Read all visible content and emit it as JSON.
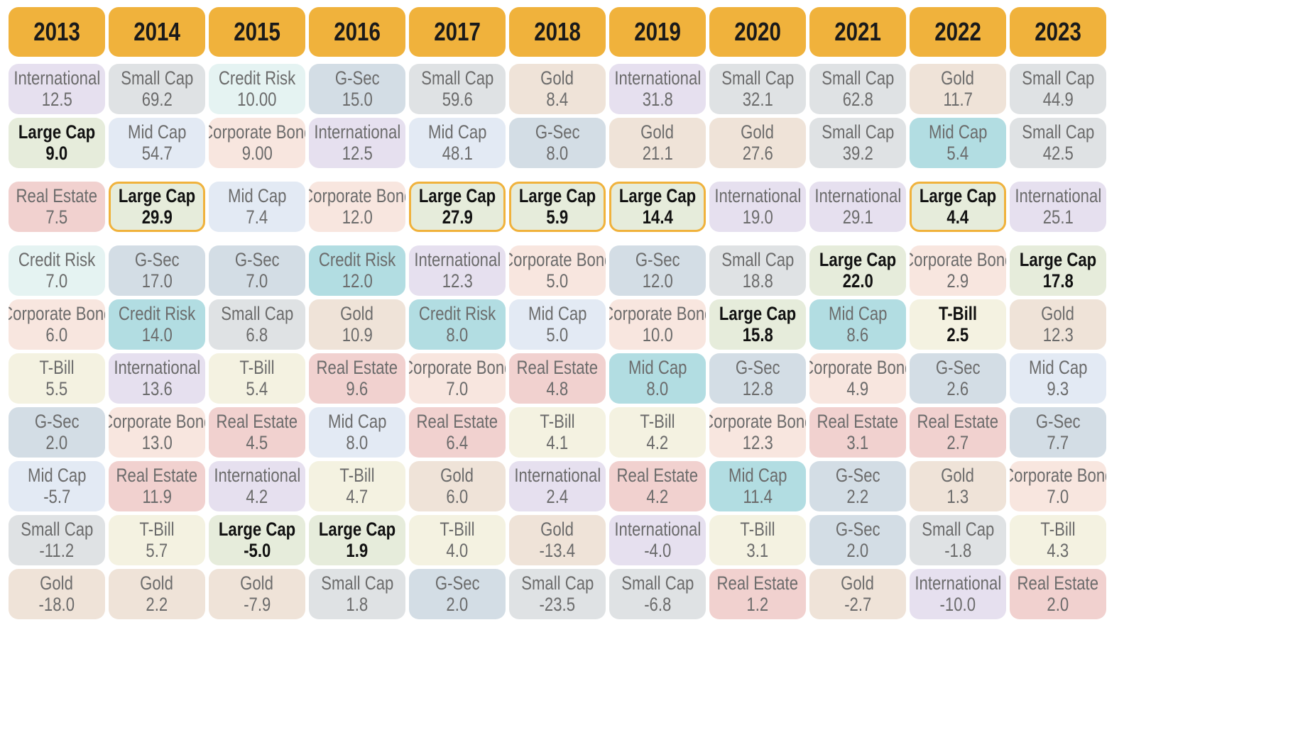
{
  "chart_data": {
    "type": "table",
    "title": "",
    "highlight_series": "Large Cap",
    "outlined_cells_note_series": "Large Cap",
    "colors": {
      "header": "#f0b23c",
      "highlight_text": "#111111",
      "text": "#6b6b6b",
      "outline": "#f0b23c"
    },
    "asset_colors": {
      "International": "#e6e0ef",
      "Small Cap": "#dfe2e4",
      "Credit Risk": "#e5f3f2",
      "G-Sec": "#d3dde5",
      "Gold": "#efe3d8",
      "Large Cap": "#e6ecdb",
      "Mid Cap": "#e3eaf4",
      "Corporate Bond": "#f8e6df",
      "Real Estate": "#f1d1cf",
      "T-Bill": "#f4f2e1"
    },
    "teal_cell_color": "#b2dde2",
    "years": [
      "2013",
      "2014",
      "2015",
      "2016",
      "2017",
      "2018",
      "2019",
      "2020",
      "2021",
      "2022",
      "2023"
    ],
    "columns": [
      [
        {
          "name": "International",
          "value": "12.5"
        },
        {
          "name": "Large Cap",
          "value": "9.0"
        },
        {
          "name": "Real Estate",
          "value": "7.5"
        },
        {
          "name": "Credit Risk",
          "value": "7.0"
        },
        {
          "name": "Corporate Bond",
          "value": "6.0"
        },
        {
          "name": "T-Bill",
          "value": "5.5"
        },
        {
          "name": "G-Sec",
          "value": "2.0"
        },
        {
          "name": "Mid Cap",
          "value": "-5.7"
        },
        {
          "name": "Small Cap",
          "value": "-11.2"
        },
        {
          "name": "Gold",
          "value": "-18.0"
        }
      ],
      [
        {
          "name": "Small Cap",
          "value": "69.2"
        },
        {
          "name": "Mid Cap",
          "value": "54.7"
        },
        {
          "name": "Large Cap",
          "value": "29.9",
          "outlined": true
        },
        {
          "name": "G-Sec",
          "value": "17.0"
        },
        {
          "name": "Credit Risk",
          "value": "14.0",
          "teal": true
        },
        {
          "name": "International",
          "value": "13.6"
        },
        {
          "name": "Corporate Bond",
          "value": "13.0"
        },
        {
          "name": "Real Estate",
          "value": "11.9"
        },
        {
          "name": "T-Bill",
          "value": "5.7"
        },
        {
          "name": "Gold",
          "value": "2.2"
        }
      ],
      [
        {
          "name": "Credit Risk",
          "value": "10.00"
        },
        {
          "name": "Corporate Bond",
          "value": "9.00"
        },
        {
          "name": "Mid Cap",
          "value": "7.4"
        },
        {
          "name": "G-Sec",
          "value": "7.0"
        },
        {
          "name": "Small Cap",
          "value": "6.8"
        },
        {
          "name": "T-Bill",
          "value": "5.4"
        },
        {
          "name": "Real Estate",
          "value": "4.5"
        },
        {
          "name": "International",
          "value": "4.2"
        },
        {
          "name": "Large Cap",
          "value": "-5.0"
        },
        {
          "name": "Gold",
          "value": "-7.9"
        }
      ],
      [
        {
          "name": "G-Sec",
          "value": "15.0"
        },
        {
          "name": "International",
          "value": "12.5"
        },
        {
          "name": "Corporate Bond",
          "value": "12.0"
        },
        {
          "name": "Credit Risk",
          "value": "12.0",
          "teal": true
        },
        {
          "name": "Gold",
          "value": "10.9"
        },
        {
          "name": "Real Estate",
          "value": "9.6"
        },
        {
          "name": "Mid Cap",
          "value": "8.0"
        },
        {
          "name": "T-Bill",
          "value": "4.7"
        },
        {
          "name": "Large Cap",
          "value": "1.9"
        },
        {
          "name": "Small Cap",
          "value": "1.8"
        }
      ],
      [
        {
          "name": "Small Cap",
          "value": "59.6"
        },
        {
          "name": "Mid Cap",
          "value": "48.1"
        },
        {
          "name": "Large Cap",
          "value": "27.9",
          "outlined": true
        },
        {
          "name": "International",
          "value": "12.3"
        },
        {
          "name": "Credit Risk",
          "value": "8.0",
          "teal": true
        },
        {
          "name": "Corporate Bond",
          "value": "7.0"
        },
        {
          "name": "Real Estate",
          "value": "6.4"
        },
        {
          "name": "Gold",
          "value": "6.0"
        },
        {
          "name": "T-Bill",
          "value": "4.0"
        },
        {
          "name": "G-Sec",
          "value": "2.0"
        }
      ],
      [
        {
          "name": "Gold",
          "value": "8.4"
        },
        {
          "name": "G-Sec",
          "value": "8.0"
        },
        {
          "name": "Large Cap",
          "value": "5.9",
          "outlined": true
        },
        {
          "name": "Corporate Bond",
          "value": "5.0"
        },
        {
          "name": "Mid Cap",
          "value": "5.0"
        },
        {
          "name": "Real Estate",
          "value": "4.8"
        },
        {
          "name": "T-Bill",
          "value": "4.1"
        },
        {
          "name": "International",
          "value": "2.4"
        },
        {
          "name": "Gold",
          "value": "-13.4"
        },
        {
          "name": "Small Cap",
          "value": "-23.5"
        }
      ],
      [
        {
          "name": "International",
          "value": "31.8"
        },
        {
          "name": "Gold",
          "value": "21.1"
        },
        {
          "name": "Large Cap",
          "value": "14.4",
          "outlined": true
        },
        {
          "name": "G-Sec",
          "value": "12.0"
        },
        {
          "name": "Corporate Bond",
          "value": "10.0"
        },
        {
          "name": "Mid Cap",
          "value": "8.0",
          "teal": true
        },
        {
          "name": "T-Bill",
          "value": "4.2"
        },
        {
          "name": "Real Estate",
          "value": "4.2"
        },
        {
          "name": "International",
          "value": "-4.0"
        },
        {
          "name": "Small Cap",
          "value": "-6.8"
        }
      ],
      [
        {
          "name": "Small Cap",
          "value": "32.1"
        },
        {
          "name": "Gold",
          "value": "27.6"
        },
        {
          "name": "International",
          "value": "19.0"
        },
        {
          "name": "Small Cap",
          "value": "18.8"
        },
        {
          "name": "Large Cap",
          "value": "15.8"
        },
        {
          "name": "G-Sec",
          "value": "12.8"
        },
        {
          "name": "Corporate Bond",
          "value": "12.3"
        },
        {
          "name": "Mid Cap",
          "value": "11.4",
          "teal": true
        },
        {
          "name": "T-Bill",
          "value": "3.1"
        },
        {
          "name": "Real Estate",
          "value": "1.2"
        }
      ],
      [
        {
          "name": "Small Cap",
          "value": "62.8"
        },
        {
          "name": "Small Cap",
          "value": "39.2"
        },
        {
          "name": "International",
          "value": "29.1"
        },
        {
          "name": "Large Cap",
          "value": "22.0"
        },
        {
          "name": "Mid Cap",
          "value": "8.6",
          "teal": true
        },
        {
          "name": "Corporate Bond",
          "value": "4.9"
        },
        {
          "name": "Real Estate",
          "value": "3.1"
        },
        {
          "name": "G-Sec",
          "value": "2.2"
        },
        {
          "name": "G-Sec",
          "value": "2.0"
        },
        {
          "name": "Gold",
          "value": "-2.7"
        }
      ],
      [
        {
          "name": "Gold",
          "value": "11.7"
        },
        {
          "name": "Mid Cap",
          "value": "5.4",
          "teal": true
        },
        {
          "name": "Large Cap",
          "value": "4.4",
          "outlined": true
        },
        {
          "name": "Corporate Bond",
          "value": "2.9"
        },
        {
          "name": "T-Bill",
          "value": "2.5",
          "bold": true
        },
        {
          "name": "G-Sec",
          "value": "2.6"
        },
        {
          "name": "Real Estate",
          "value": "2.7"
        },
        {
          "name": "Gold",
          "value": "1.3"
        },
        {
          "name": "Small Cap",
          "value": "-1.8"
        },
        {
          "name": "International",
          "value": "-10.0"
        }
      ],
      [
        {
          "name": "Small Cap",
          "value": "44.9"
        },
        {
          "name": "Small Cap",
          "value": "42.5"
        },
        {
          "name": "International",
          "value": "25.1"
        },
        {
          "name": "Large Cap",
          "value": "17.8"
        },
        {
          "name": "Gold",
          "value": "12.3"
        },
        {
          "name": "Mid Cap",
          "value": "9.3"
        },
        {
          "name": "G-Sec",
          "value": "7.7"
        },
        {
          "name": "Corporate Bond",
          "value": "7.0"
        },
        {
          "name": "T-Bill",
          "value": "4.3"
        },
        {
          "name": "Real Estate",
          "value": "2.0"
        }
      ]
    ]
  }
}
